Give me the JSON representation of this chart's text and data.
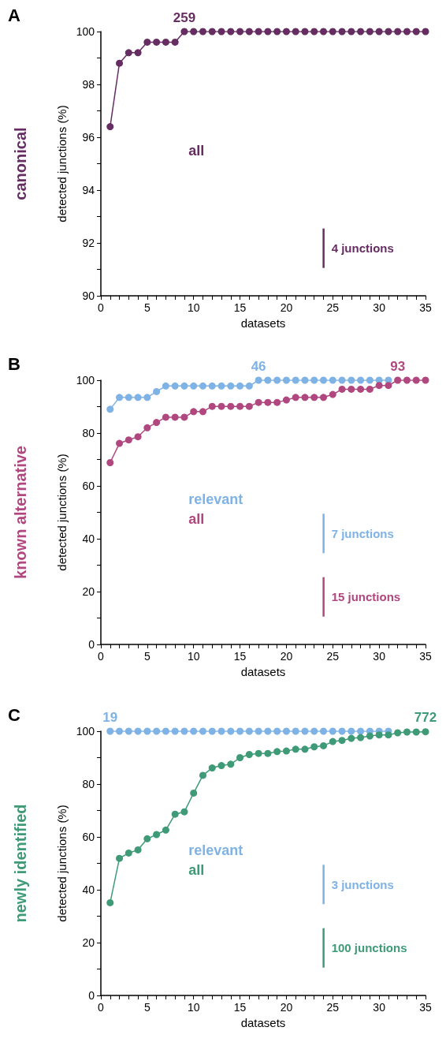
{
  "chart_data": [
    {
      "type": "line",
      "subtitle": "A",
      "title": "canonical",
      "xlabel": "datasets",
      "ylabel": "detected junctions (%)",
      "marker": "circle",
      "line_style": "solid",
      "grid": false,
      "legend": false,
      "x": [
        1,
        2,
        3,
        4,
        5,
        6,
        7,
        8,
        9,
        10,
        11,
        12,
        13,
        14,
        15,
        16,
        17,
        18,
        19,
        20,
        21,
        22,
        23,
        24,
        25,
        26,
        27,
        28,
        29,
        30,
        31,
        32,
        33,
        34,
        35
      ],
      "xlim": [
        0,
        35
      ],
      "xticks": [
        0,
        {
          "value": 1,
          "label": null
        },
        {
          "value": 2,
          "label": null
        },
        {
          "value": 3,
          "label": null
        },
        {
          "value": 4,
          "label": null
        },
        5,
        {
          "value": 6,
          "label": null
        },
        {
          "value": 7,
          "label": null
        },
        {
          "value": 8,
          "label": null
        },
        {
          "value": 9,
          "label": null
        },
        10,
        {
          "value": 11,
          "label": null
        },
        {
          "value": 12,
          "label": null
        },
        {
          "value": 13,
          "label": null
        },
        {
          "value": 14,
          "label": null
        },
        15,
        {
          "value": 16,
          "label": null
        },
        {
          "value": 17,
          "label": null
        },
        {
          "value": 18,
          "label": null
        },
        {
          "value": 19,
          "label": null
        },
        20,
        {
          "value": 21,
          "label": null
        },
        {
          "value": 22,
          "label": null
        },
        {
          "value": 23,
          "label": null
        },
        {
          "value": 24,
          "label": null
        },
        25,
        {
          "value": 26,
          "label": null
        },
        {
          "value": 27,
          "label": null
        },
        {
          "value": 28,
          "label": null
        },
        {
          "value": 29,
          "label": null
        },
        30,
        {
          "value": 31,
          "label": null
        },
        {
          "value": 32,
          "label": null
        },
        {
          "value": 33,
          "label": null
        },
        {
          "value": 34,
          "label": null
        },
        35
      ],
      "ylim": [
        90,
        100
      ],
      "yticks": [
        90,
        {
          "value": 91,
          "label": null
        },
        92,
        {
          "value": 93,
          "label": null
        },
        94,
        {
          "value": 95,
          "label": null
        },
        96,
        {
          "value": 97,
          "label": null
        },
        98,
        {
          "value": 99,
          "label": null
        },
        100
      ],
      "series": [
        {
          "name": "all",
          "color": "#662d62",
          "values": [
            96.4,
            98.8,
            99.2,
            99.2,
            99.6,
            99.6,
            99.6,
            99.6,
            100,
            100,
            100,
            100,
            100,
            100,
            100,
            100,
            100,
            100,
            100,
            100,
            100,
            100,
            100,
            100,
            100,
            100,
            100,
            100,
            100,
            100,
            100,
            100,
            100,
            100,
            100
          ]
        }
      ],
      "annotations": [
        {
          "text": "259",
          "x": 9,
          "y": 100
        },
        "4 junctions"
      ]
    },
    {
      "type": "line",
      "subtitle": "B",
      "title": "known alternative",
      "xlabel": "datasets",
      "ylabel": "detected junctions (%)",
      "marker": "circle",
      "line_style": "solid",
      "grid": false,
      "legend": false,
      "x": [
        1,
        2,
        3,
        4,
        5,
        6,
        7,
        8,
        9,
        10,
        11,
        12,
        13,
        14,
        15,
        16,
        17,
        18,
        19,
        20,
        21,
        22,
        23,
        24,
        25,
        26,
        27,
        28,
        29,
        30,
        31,
        32,
        33,
        34,
        35
      ],
      "xlim": [
        0,
        35
      ],
      "xticks": [
        0,
        {
          "value": 1,
          "label": null
        },
        {
          "value": 2,
          "label": null
        },
        {
          "value": 3,
          "label": null
        },
        {
          "value": 4,
          "label": null
        },
        5,
        {
          "value": 6,
          "label": null
        },
        {
          "value": 7,
          "label": null
        },
        {
          "value": 8,
          "label": null
        },
        {
          "value": 9,
          "label": null
        },
        10,
        {
          "value": 11,
          "label": null
        },
        {
          "value": 12,
          "label": null
        },
        {
          "value": 13,
          "label": null
        },
        {
          "value": 14,
          "label": null
        },
        15,
        {
          "value": 16,
          "label": null
        },
        {
          "value": 17,
          "label": null
        },
        {
          "value": 18,
          "label": null
        },
        {
          "value": 19,
          "label": null
        },
        20,
        {
          "value": 21,
          "label": null
        },
        {
          "value": 22,
          "label": null
        },
        {
          "value": 23,
          "label": null
        },
        {
          "value": 24,
          "label": null
        },
        25,
        {
          "value": 26,
          "label": null
        },
        {
          "value": 27,
          "label": null
        },
        {
          "value": 28,
          "label": null
        },
        {
          "value": 29,
          "label": null
        },
        30,
        {
          "value": 31,
          "label": null
        },
        {
          "value": 32,
          "label": null
        },
        {
          "value": 33,
          "label": null
        },
        {
          "value": 34,
          "label": null
        },
        35
      ],
      "ylim": [
        0,
        100
      ],
      "yticks": [
        0,
        {
          "value": 10,
          "label": null
        },
        20,
        {
          "value": 30,
          "label": null
        },
        40,
        {
          "value": 50,
          "label": null
        },
        60,
        {
          "value": 70,
          "label": null
        },
        80,
        {
          "value": 90,
          "label": null
        },
        100
      ],
      "series": [
        {
          "name": "relevant",
          "color": "#7fb2e5",
          "values": [
            89,
            93.5,
            93.5,
            93.5,
            93.5,
            95.7,
            97.8,
            97.8,
            97.8,
            97.8,
            97.8,
            97.8,
            97.8,
            97.8,
            97.8,
            97.8,
            100,
            100,
            100,
            100,
            100,
            100,
            100,
            100,
            100,
            100,
            100,
            100,
            100,
            100,
            100,
            null,
            null,
            null,
            null
          ]
        },
        {
          "name": "all",
          "color": "#b0487f",
          "values": [
            68.8,
            76.1,
            77.4,
            78.6,
            82,
            84,
            86,
            86,
            86,
            88.1,
            88.1,
            90.1,
            90.1,
            90.1,
            90.1,
            90.1,
            91.6,
            91.6,
            91.6,
            92.5,
            93.5,
            93.5,
            93.5,
            93.5,
            94.6,
            96.6,
            96.6,
            96.6,
            96.6,
            98,
            98,
            100,
            100,
            100,
            100
          ]
        }
      ],
      "annotations": [
        {
          "text": "46",
          "x": 17,
          "y": 100
        },
        {
          "text": "93",
          "x": 32,
          "y": 100
        },
        "7 junctions",
        "15 junctions"
      ]
    },
    {
      "type": "line",
      "subtitle": "C",
      "title": "newly identified",
      "xlabel": "datasets",
      "ylabel": "detected junctions (%)",
      "marker": "circle",
      "line_style": "solid",
      "grid": false,
      "legend": false,
      "x": [
        1,
        2,
        3,
        4,
        5,
        6,
        7,
        8,
        9,
        10,
        11,
        12,
        13,
        14,
        15,
        16,
        17,
        18,
        19,
        20,
        21,
        22,
        23,
        24,
        25,
        26,
        27,
        28,
        29,
        30,
        31,
        32,
        33,
        34,
        35
      ],
      "xlim": [
        0,
        35
      ],
      "xticks": [
        0,
        {
          "value": 1,
          "label": null
        },
        {
          "value": 2,
          "label": null
        },
        {
          "value": 3,
          "label": null
        },
        {
          "value": 4,
          "label": null
        },
        5,
        {
          "value": 6,
          "label": null
        },
        {
          "value": 7,
          "label": null
        },
        {
          "value": 8,
          "label": null
        },
        {
          "value": 9,
          "label": null
        },
        10,
        {
          "value": 11,
          "label": null
        },
        {
          "value": 12,
          "label": null
        },
        {
          "value": 13,
          "label": null
        },
        {
          "value": 14,
          "label": null
        },
        15,
        {
          "value": 16,
          "label": null
        },
        {
          "value": 17,
          "label": null
        },
        {
          "value": 18,
          "label": null
        },
        {
          "value": 19,
          "label": null
        },
        20,
        {
          "value": 21,
          "label": null
        },
        {
          "value": 22,
          "label": null
        },
        {
          "value": 23,
          "label": null
        },
        {
          "value": 24,
          "label": null
        },
        25,
        {
          "value": 26,
          "label": null
        },
        {
          "value": 27,
          "label": null
        },
        {
          "value": 28,
          "label": null
        },
        {
          "value": 29,
          "label": null
        },
        30,
        {
          "value": 31,
          "label": null
        },
        {
          "value": 32,
          "label": null
        },
        {
          "value": 33,
          "label": null
        },
        {
          "value": 34,
          "label": null
        },
        35
      ],
      "ylim": [
        0,
        100
      ],
      "yticks": [
        0,
        {
          "value": 10,
          "label": null
        },
        20,
        {
          "value": 30,
          "label": null
        },
        40,
        {
          "value": 50,
          "label": null
        },
        60,
        {
          "value": 70,
          "label": null
        },
        80,
        {
          "value": 90,
          "label": null
        },
        100
      ],
      "series": [
        {
          "name": "relevant",
          "color": "#7fb2e5",
          "values": [
            100,
            100,
            100,
            100,
            100,
            100,
            100,
            100,
            100,
            100,
            100,
            100,
            100,
            100,
            100,
            100,
            100,
            100,
            100,
            100,
            100,
            100,
            100,
            100,
            100,
            100,
            100,
            100,
            100,
            100,
            100,
            null,
            null,
            null,
            null
          ]
        },
        {
          "name": "all",
          "color": "#3e9a77",
          "values": [
            35.1,
            51.9,
            53.9,
            55.1,
            59.3,
            60.9,
            62.6,
            68.6,
            69.5,
            76.6,
            83.3,
            86.1,
            87,
            87.5,
            90,
            91.2,
            91.6,
            91.6,
            92.3,
            92.5,
            93.2,
            93.2,
            94.1,
            94.5,
            96.1,
            96.5,
            97.3,
            97.6,
            98.2,
            98.6,
            98.6,
            99.4,
            99.7,
            99.7,
            99.8
          ]
        }
      ],
      "annotations": [
        {
          "text": "19",
          "x": 1,
          "y": 100
        },
        {
          "text": "772",
          "x": 35,
          "y": 100
        },
        "3 junctions",
        "100 junctions"
      ]
    }
  ]
}
